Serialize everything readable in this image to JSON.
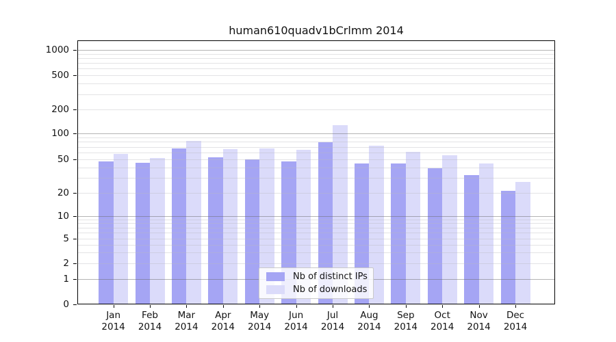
{
  "page": {
    "title": "human610quadv1bCrlmm 2014"
  },
  "chart_data": {
    "type": "bar",
    "title": "human610quadv1bCrlmm 2014",
    "categories": [
      "Jan",
      "Feb",
      "Mar",
      "Apr",
      "May",
      "Jun",
      "Jul",
      "Aug",
      "Sep",
      "Oct",
      "Nov",
      "Dec"
    ],
    "year_label": "2014",
    "series": [
      {
        "name": "Nb of distinct IPs",
        "color": "#a5a5f4",
        "values": [
          47,
          45,
          66,
          52,
          49,
          47,
          79,
          44,
          44,
          39,
          32,
          21
        ]
      },
      {
        "name": "Nb of downloads",
        "color": "#dbdbfa",
        "values": [
          57,
          51,
          82,
          65,
          66,
          64,
          127,
          71,
          61,
          55,
          44,
          27
        ]
      }
    ],
    "y_ticks": [
      0,
      1,
      2,
      5,
      10,
      20,
      50,
      100,
      200,
      500,
      1000
    ],
    "y_scale": "log-like with zero baseline",
    "ylim": [
      0,
      1000
    ],
    "grid": true,
    "grid_major_values": [
      1,
      10,
      100,
      1000
    ],
    "grid_minor_values": [
      2,
      3,
      4,
      5,
      6,
      7,
      8,
      9,
      20,
      30,
      40,
      50,
      60,
      70,
      80,
      90,
      200,
      300,
      400,
      500,
      600,
      700,
      800,
      900
    ],
    "legend_position": "inside-bottom-center",
    "axis_color": "#000000"
  }
}
